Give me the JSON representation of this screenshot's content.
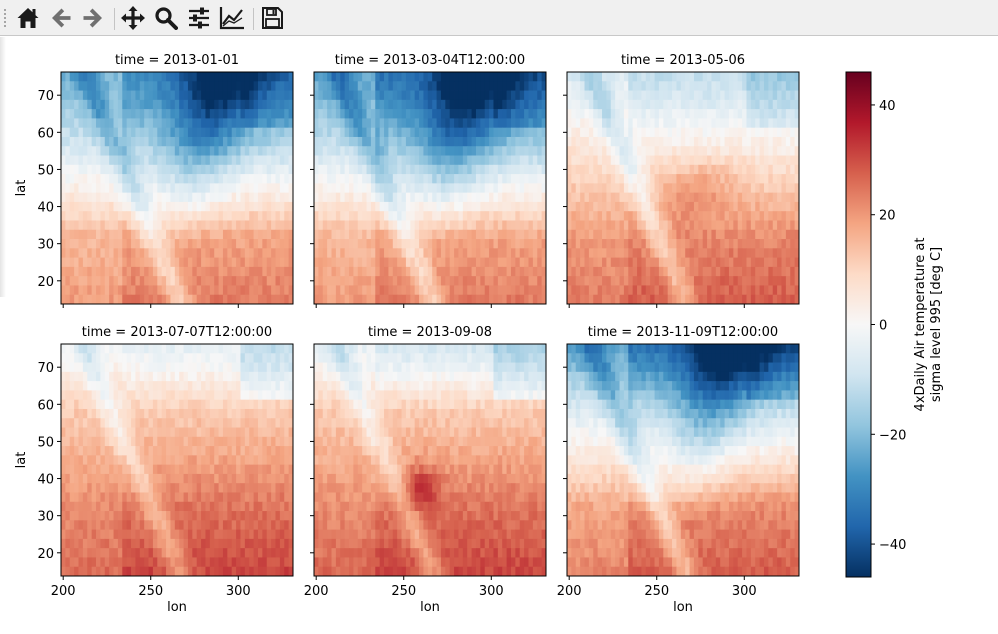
{
  "toolbar": {
    "buttons": [
      {
        "name": "home-button",
        "icon": "home-icon",
        "tooltip": "Reset original view"
      },
      {
        "name": "back-button",
        "icon": "arrow-left-icon",
        "tooltip": "Back to previous view"
      },
      {
        "name": "forward-button",
        "icon": "arrow-right-icon",
        "tooltip": "Forward to next view"
      },
      {
        "name": "pan-button",
        "icon": "move-icon",
        "tooltip": "Pan axes"
      },
      {
        "name": "zoom-button",
        "icon": "magnifier-icon",
        "tooltip": "Zoom to rectangle"
      },
      {
        "name": "subplots-button",
        "icon": "sliders-icon",
        "tooltip": "Configure subplots"
      },
      {
        "name": "customize-button",
        "icon": "line-chart-icon",
        "tooltip": "Edit axis, curve and image parameters"
      },
      {
        "name": "save-button",
        "icon": "floppy-disk-icon",
        "tooltip": "Save the figure"
      }
    ]
  },
  "chart_data": {
    "type": "heatmap",
    "facet_titles": [
      "time = 2013-01-01",
      "time = 2013-03-04T12:00:00",
      "time = 2013-05-06",
      "time = 2013-07-07T12:00:00",
      "time = 2013-09-08",
      "time = 2013-11-09T12:00:00"
    ],
    "xlabel": "lon",
    "ylabel": "lat",
    "xlim": [
      200,
      330
    ],
    "ylim": [
      15,
      75
    ],
    "xticks": [
      200,
      250,
      300
    ],
    "yticks": [
      20,
      30,
      40,
      50,
      60,
      70
    ],
    "colormap": "RdBu_r",
    "colorbar": {
      "label_line1": "4xDaily Air temperature at",
      "label_line2": "sigma level 995 [deg C]",
      "range": [
        -46,
        46
      ],
      "ticks": [
        -40,
        -20,
        0,
        20,
        40
      ]
    },
    "grid_cells": {
      "lon_count": 53,
      "lat_count": 25
    },
    "approx_temperature_fields_deg_c": [
      {
        "north_70_75": -26,
        "center_north_55_65": -15,
        "south_15_30": 18
      },
      {
        "north_70_75": -30,
        "center_north_55_65": -18,
        "south_15_30": 18
      },
      {
        "north_70_75": -8,
        "center_north_55_65": 2,
        "south_15_30": 22
      },
      {
        "north_70_75": 0,
        "center_north_55_65": 12,
        "south_15_30": 25
      },
      {
        "north_70_75": -3,
        "center_north_55_65": 12,
        "south_15_30": 25
      },
      {
        "north_70_75": -28,
        "center_north_55_65": -10,
        "south_15_30": 22
      }
    ]
  }
}
